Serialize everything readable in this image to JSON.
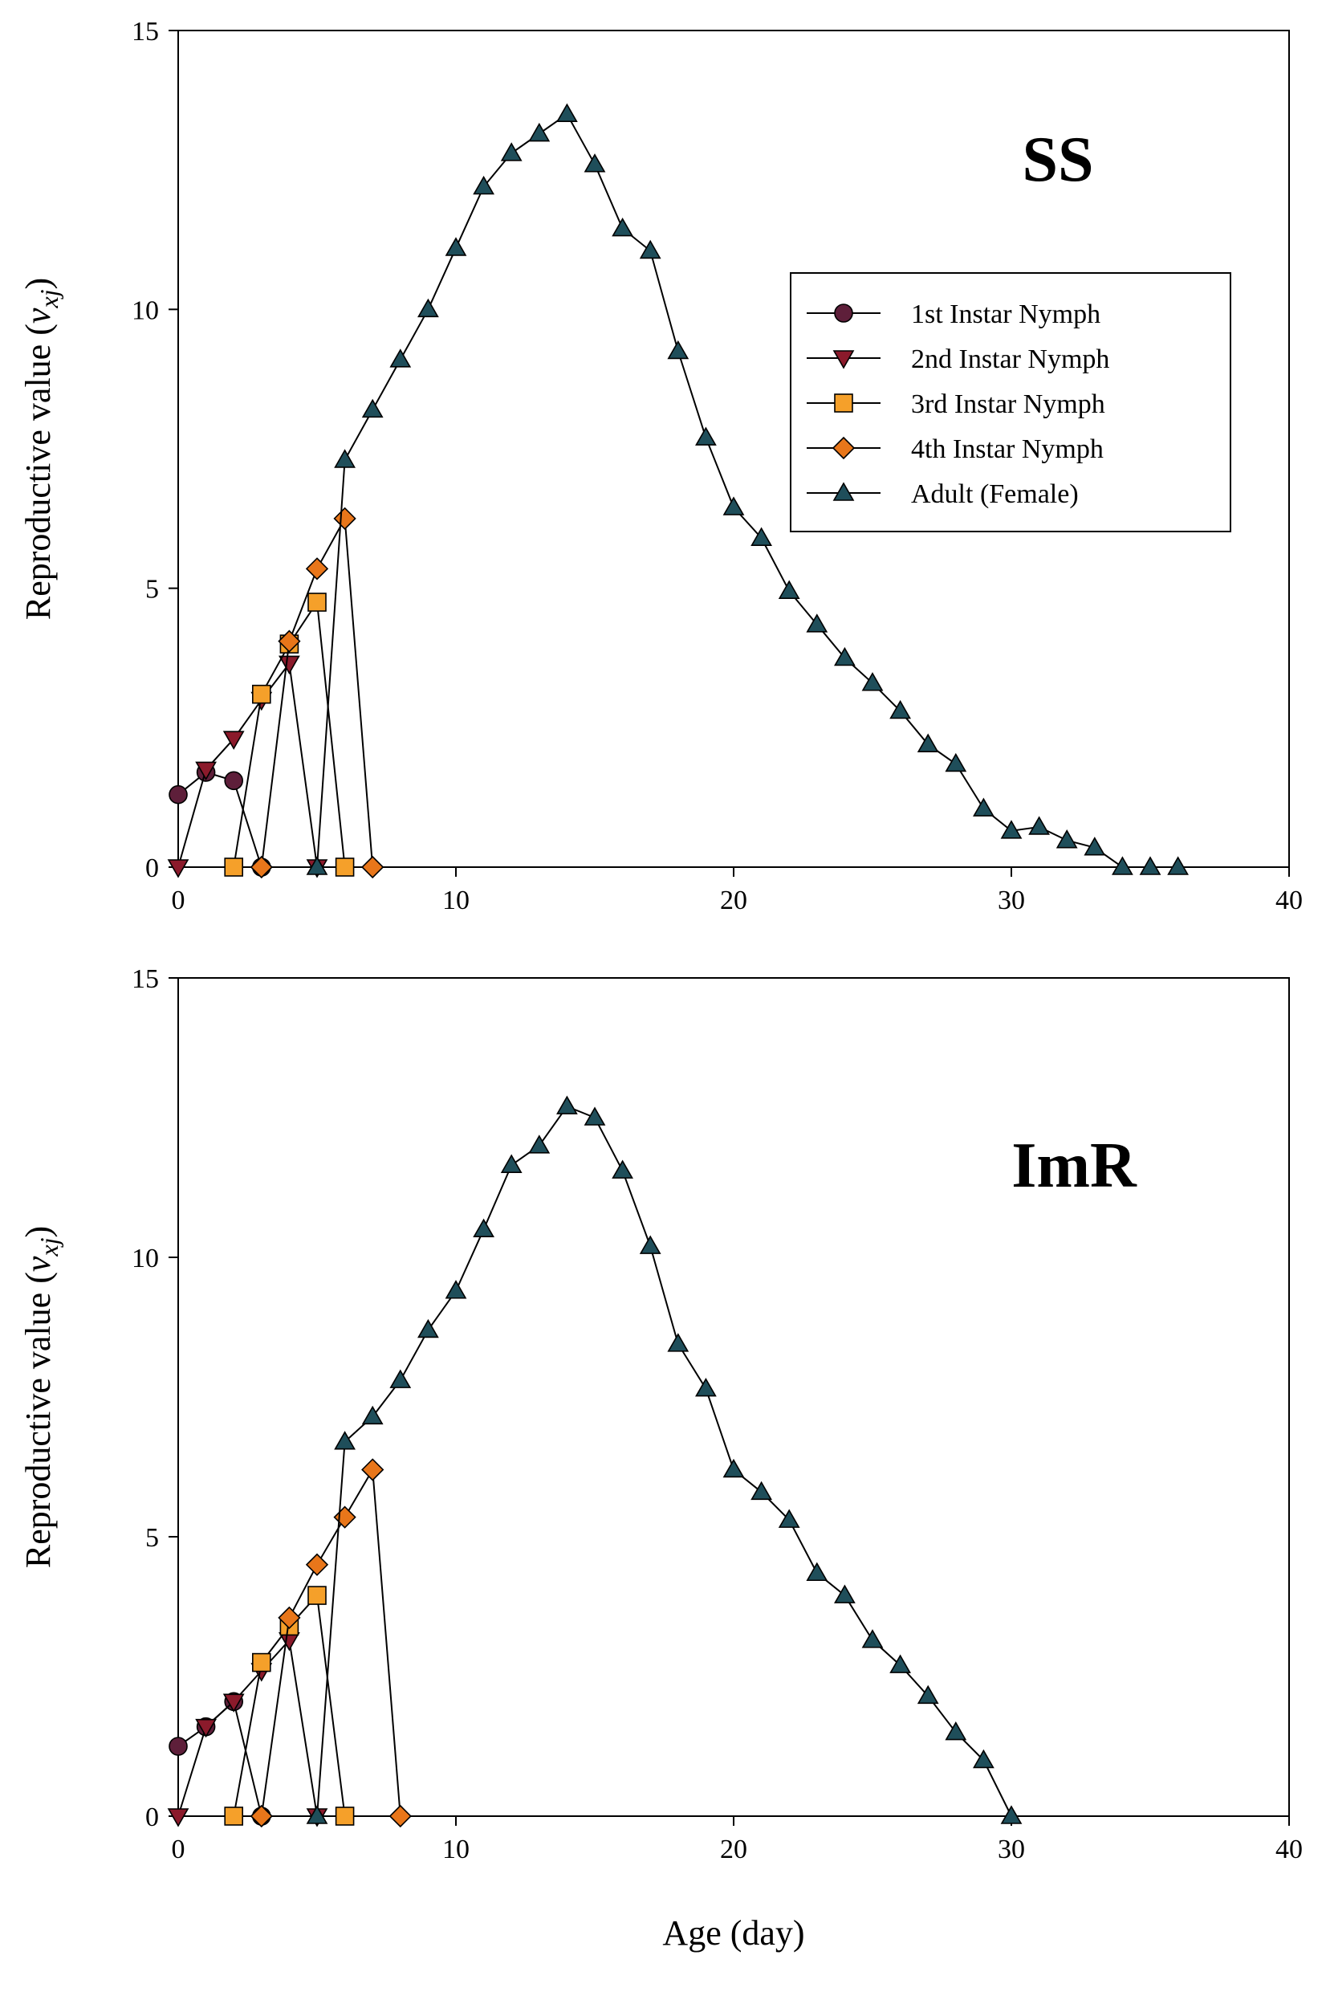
{
  "chart_data": [
    {
      "type": "line",
      "panel_label": "SS",
      "xlabel": "",
      "ylabel_main": "Reproductive value (",
      "ylabel_symbol": "v",
      "ylabel_subscript": "xj",
      "ylabel_end": ")",
      "xlim": [
        0,
        40
      ],
      "ylim": [
        0,
        15
      ],
      "xticks": [
        "0",
        "10",
        "20",
        "30",
        "40"
      ],
      "yticks": [
        "0",
        "5",
        "10",
        "15"
      ],
      "legend": true,
      "legend_position": "top-right",
      "series": [
        {
          "name": "1st Instar Nymph",
          "marker": "circle",
          "color": "#5e1f3a",
          "x": [
            0,
            1,
            2,
            3
          ],
          "y": [
            1.3,
            1.7,
            1.55,
            0
          ]
        },
        {
          "name": "2nd Instar Nymph",
          "marker": "triangle-down",
          "color": "#8b1a2b",
          "x": [
            0,
            1,
            2,
            3,
            4,
            5
          ],
          "y": [
            0,
            1.75,
            2.3,
            3.0,
            3.65,
            0
          ]
        },
        {
          "name": "3rd Instar Nymph",
          "marker": "square",
          "color": "#f5a02a",
          "x": [
            2,
            3,
            4,
            5,
            6
          ],
          "y": [
            0,
            3.1,
            4.0,
            4.75,
            0
          ]
        },
        {
          "name": "4th Instar Nymph",
          "marker": "diamond",
          "color": "#e8761a",
          "x": [
            3,
            4,
            5,
            6,
            7
          ],
          "y": [
            0,
            4.05,
            5.35,
            6.25,
            0
          ]
        },
        {
          "name": "Adult (Female)",
          "marker": "triangle-up",
          "color": "#1f4e5a",
          "x": [
            5,
            6,
            7,
            8,
            9,
            10,
            11,
            12,
            13,
            14,
            15,
            16,
            17,
            18,
            19,
            20,
            21,
            22,
            23,
            24,
            25,
            26,
            27,
            28,
            29,
            30,
            31,
            32,
            33,
            34,
            35,
            36
          ],
          "y": [
            0,
            7.3,
            8.2,
            9.1,
            10.0,
            11.1,
            12.2,
            12.8,
            13.15,
            13.5,
            12.6,
            11.45,
            11.05,
            9.25,
            7.7,
            6.45,
            5.9,
            4.95,
            4.35,
            3.75,
            3.3,
            2.8,
            2.2,
            1.85,
            1.05,
            0.65,
            0.72,
            0.48,
            0.35,
            0,
            0,
            0
          ]
        }
      ]
    },
    {
      "type": "line",
      "panel_label": "ImR",
      "xlabel": "Age (day)",
      "ylabel_main": "Reproductive value (",
      "ylabel_symbol": "v",
      "ylabel_subscript": "xj",
      "ylabel_end": ")",
      "xlim": [
        0,
        40
      ],
      "ylim": [
        0,
        15
      ],
      "xticks": [
        "0",
        "10",
        "20",
        "30",
        "40"
      ],
      "yticks": [
        "0",
        "5",
        "10",
        "15"
      ],
      "legend": false,
      "series": [
        {
          "name": "1st Instar Nymph",
          "marker": "circle",
          "color": "#5e1f3a",
          "x": [
            0,
            1,
            2,
            3
          ],
          "y": [
            1.25,
            1.6,
            2.05,
            0
          ]
        },
        {
          "name": "2nd Instar Nymph",
          "marker": "triangle-down",
          "color": "#8b1a2b",
          "x": [
            0,
            1,
            2,
            3,
            4,
            5
          ],
          "y": [
            0,
            1.6,
            2.05,
            2.6,
            3.15,
            0
          ]
        },
        {
          "name": "3rd Instar Nymph",
          "marker": "square",
          "color": "#f5a02a",
          "x": [
            2,
            3,
            4,
            5,
            6
          ],
          "y": [
            0,
            2.75,
            3.4,
            3.95,
            0
          ]
        },
        {
          "name": "4th Instar Nymph",
          "marker": "diamond",
          "color": "#e8761a",
          "x": [
            3,
            4,
            5,
            6,
            7,
            8
          ],
          "y": [
            0,
            3.55,
            4.5,
            5.35,
            6.2,
            0
          ]
        },
        {
          "name": "Adult (Female)",
          "marker": "triangle-up",
          "color": "#1f4e5a",
          "x": [
            5,
            6,
            7,
            8,
            9,
            10,
            11,
            12,
            13,
            14,
            15,
            16,
            17,
            18,
            19,
            20,
            21,
            22,
            23,
            24,
            25,
            26,
            27,
            28,
            29,
            30
          ],
          "y": [
            0,
            6.7,
            7.15,
            7.8,
            8.7,
            9.4,
            10.5,
            11.65,
            12.0,
            12.7,
            12.5,
            11.55,
            10.2,
            8.45,
            7.65,
            6.2,
            5.8,
            5.3,
            4.35,
            3.95,
            3.15,
            2.7,
            2.15,
            1.5,
            1.0,
            0
          ]
        }
      ]
    }
  ]
}
